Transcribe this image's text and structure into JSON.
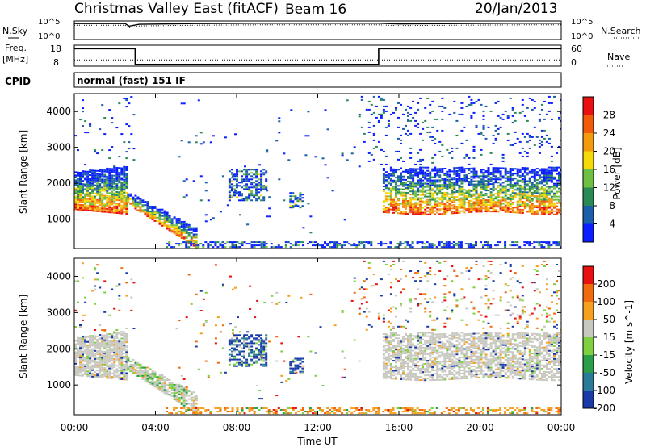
{
  "header": {
    "station": "Christmas Valley East (fitACF)",
    "beam": "Beam 16",
    "date": "20/Jan/2013"
  },
  "noise_panel": {
    "left_label": "N.Sky",
    "left_ticks": [
      "10^5",
      "10^0"
    ],
    "right_label": "N.Search",
    "right_ticks": [
      "10^5",
      "10^0"
    ]
  },
  "freq_panel": {
    "left_label_1": "Freq.",
    "left_label_2": "[MHz]",
    "left_ticks": [
      "18",
      "8"
    ],
    "right_label": "Nave",
    "right_ticks": [
      "60",
      "0"
    ]
  },
  "cpid": {
    "label": "CPID",
    "text": "normal (fast) 151 IF"
  },
  "x_axis": {
    "title": "Time UT",
    "ticks": [
      "00:00",
      "04:00",
      "08:00",
      "12:00",
      "16:00",
      "20:00",
      "00:00"
    ]
  },
  "power_panel": {
    "ylabel": "Slant Range [km]",
    "yticks": [
      "1000",
      "2000",
      "3000",
      "4000"
    ],
    "colorbar_label": "Power [dB]",
    "colorbar_ticks": [
      "4",
      "8",
      "12",
      "16",
      "20",
      "24",
      "28"
    ],
    "colors": [
      "#0a1fff",
      "#1a5fa8",
      "#2a8a55",
      "#6fbf44",
      "#f5d90a",
      "#f39a0f",
      "#f05a0a",
      "#e81010"
    ]
  },
  "velocity_panel": {
    "ylabel": "Slant Range [km]",
    "yticks": [
      "1000",
      "2000",
      "3000",
      "4000"
    ],
    "colorbar_label": "Velocity [m s^-1]",
    "colorbar_ticks": [
      "200",
      "100",
      "50",
      "15",
      "-15",
      "-50",
      "-100",
      "-200"
    ],
    "colors": [
      "#1a3aa8",
      "#2a7a9a",
      "#2c9e4a",
      "#7ed040",
      "#c8c8c0",
      "#f5a020",
      "#f06a10",
      "#e81010"
    ]
  },
  "chart_data": {
    "type": "heatmap",
    "x_range_hours": [
      0,
      24
    ],
    "y_range_km": [
      180,
      4500
    ],
    "noise_sky_log": [
      [
        0,
        4.3
      ],
      [
        2.5,
        4.3
      ],
      [
        2.7,
        3.6
      ],
      [
        3.2,
        4.1
      ],
      [
        6,
        4.3
      ],
      [
        9,
        4.4
      ],
      [
        12,
        4.4
      ],
      [
        15,
        4.4
      ],
      [
        16,
        4.2
      ],
      [
        19,
        4.3
      ],
      [
        22,
        4.4
      ],
      [
        24,
        4.4
      ]
    ],
    "nave": [
      [
        0,
        50
      ],
      [
        3,
        50
      ],
      [
        3,
        5
      ],
      [
        15,
        5
      ],
      [
        15,
        50
      ],
      [
        24,
        50
      ]
    ],
    "freq_mhz_dotted": 11,
    "regions": [
      {
        "name": "early-band",
        "t0": 0,
        "t1": 2.6,
        "r0": 1200,
        "r1": 2450
      },
      {
        "name": "descending-band",
        "t0": 2.6,
        "t1": 6.0,
        "r0": 180,
        "r1": 1400
      },
      {
        "name": "midday-cluster",
        "t0": 7.6,
        "t1": 9.4,
        "r0": 1450,
        "r1": 2400
      },
      {
        "name": "small-cluster",
        "t0": 10.6,
        "t1": 11.2,
        "r0": 1300,
        "r1": 1750
      },
      {
        "name": "evening-band",
        "t0": 15.2,
        "t1": 24,
        "r0": 1100,
        "r1": 2450
      },
      {
        "name": "ground-scatter",
        "t0": 4.5,
        "t1": 24,
        "r0": 180,
        "r1": 420
      }
    ]
  }
}
